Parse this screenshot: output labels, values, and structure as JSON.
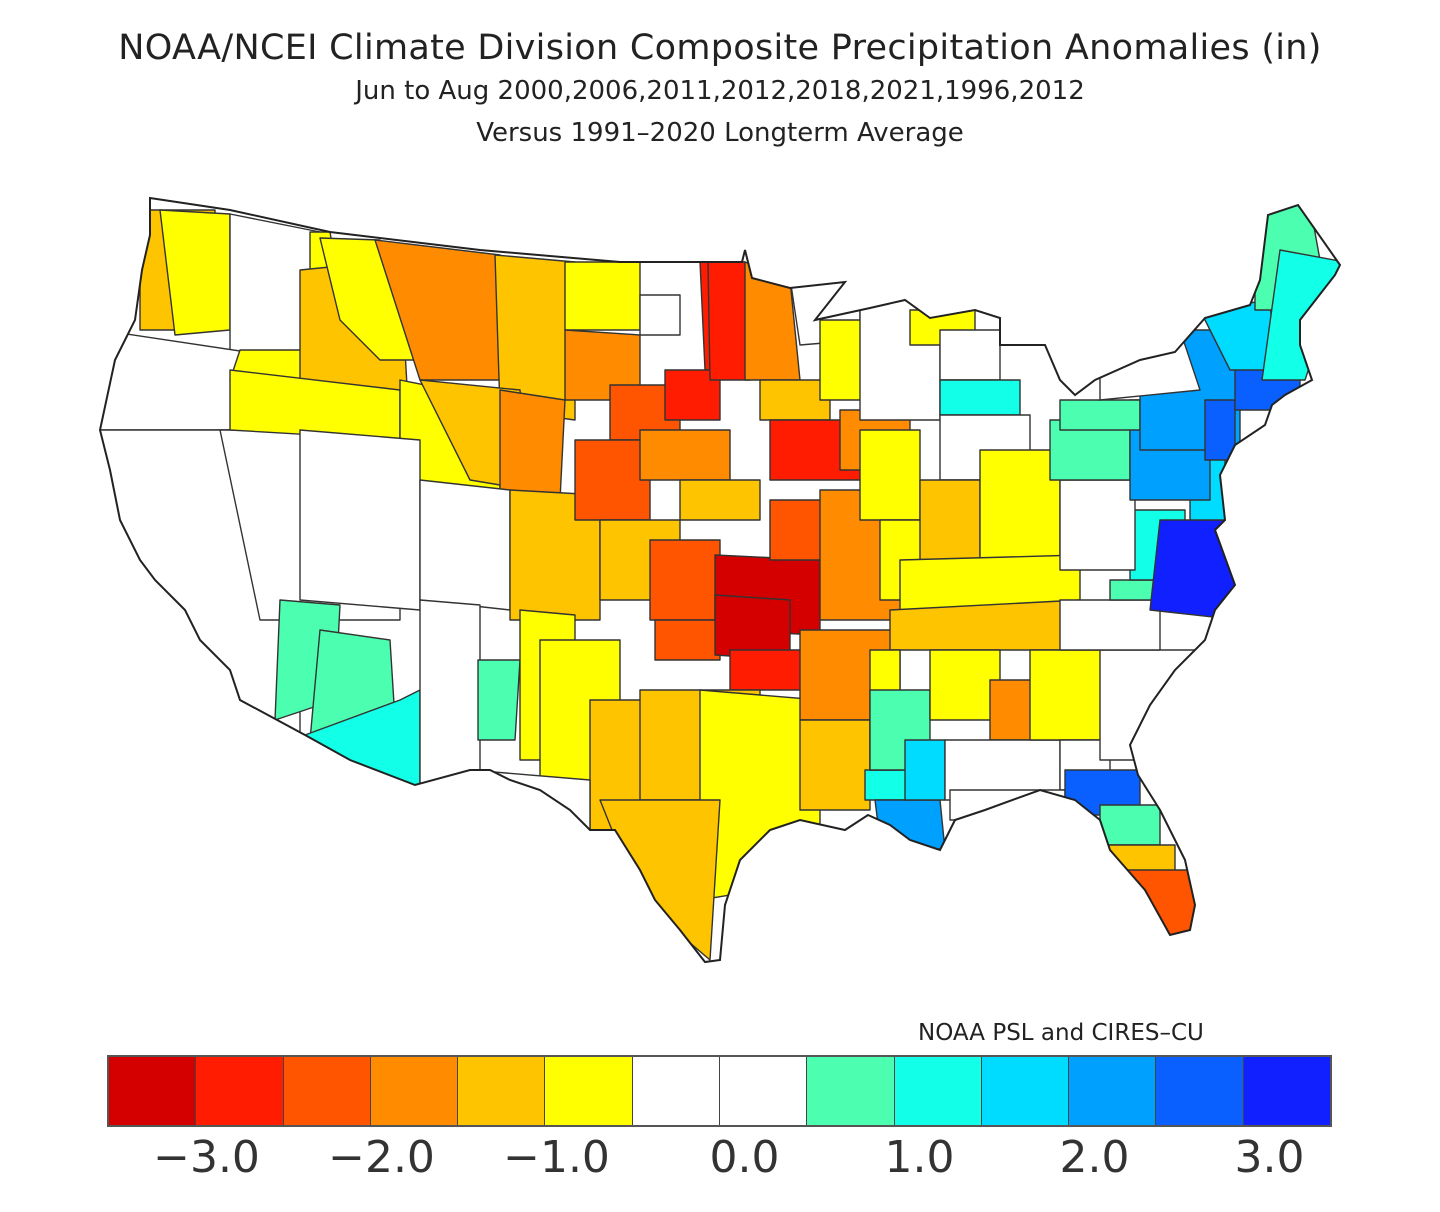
{
  "title": {
    "line1": "NOAA/NCEI Climate Division Composite Precipitation Anomalies (in)",
    "line2": "Jun to Aug  2000,2006,2011,2012,2018,2021,1996,2012",
    "line3": "Versus 1991–2020 Longterm Average"
  },
  "credit": "NOAA PSL and CIRES–CU",
  "legend": {
    "units": "in",
    "colors": [
      "#d40000",
      "#ff1c00",
      "#ff5500",
      "#ff8c00",
      "#ffc400",
      "#ffff00",
      "#ffffff",
      "#ffffff",
      "#4cffb0",
      "#12ffe8",
      "#00dcff",
      "#00a0ff",
      "#0a5fff",
      "#1020ff"
    ],
    "ticks": [
      {
        "label": "−3.0",
        "value": -3.0
      },
      {
        "label": "−2.0",
        "value": -2.0
      },
      {
        "label": "−1.0",
        "value": -1.0
      },
      {
        "label": "0.0",
        "value": 0.0
      },
      {
        "label": "1.0",
        "value": 1.0
      },
      {
        "label": "2.0",
        "value": 2.0
      },
      {
        "label": "3.0",
        "value": 3.0
      }
    ]
  },
  "map_data": {
    "type": "choropleth",
    "variable": "Precipitation anomaly (in)",
    "bins_note": "bin index 0..13 maps to legend.colors",
    "regions": [
      {
        "id": "wa-west",
        "bin": 4
      },
      {
        "id": "wa-puget",
        "bin": 5
      },
      {
        "id": "wa-other",
        "bin": 6
      },
      {
        "id": "or",
        "bin": 6
      },
      {
        "id": "ca",
        "bin": 6
      },
      {
        "id": "nv",
        "bin": 6
      },
      {
        "id": "id-north",
        "bin": 5
      },
      {
        "id": "id-central",
        "bin": 4
      },
      {
        "id": "id-south",
        "bin": 5
      },
      {
        "id": "mt-west",
        "bin": 5
      },
      {
        "id": "mt-central",
        "bin": 3
      },
      {
        "id": "mt-east",
        "bin": 4
      },
      {
        "id": "wy-west",
        "bin": 5
      },
      {
        "id": "wy-central",
        "bin": 4
      },
      {
        "id": "wy-east",
        "bin": 3
      },
      {
        "id": "ut",
        "bin": 6
      },
      {
        "id": "co-west",
        "bin": 6
      },
      {
        "id": "co-east",
        "bin": 4
      },
      {
        "id": "az-northwest",
        "bin": 8
      },
      {
        "id": "az-central",
        "bin": 8
      },
      {
        "id": "az-south",
        "bin": 9
      },
      {
        "id": "nm-west",
        "bin": 6
      },
      {
        "id": "nm-central",
        "bin": 8
      },
      {
        "id": "nm-east",
        "bin": 5
      },
      {
        "id": "nd-west",
        "bin": 5
      },
      {
        "id": "nd-central",
        "bin": 6
      },
      {
        "id": "nd-east",
        "bin": 1
      },
      {
        "id": "sd-west",
        "bin": 3
      },
      {
        "id": "sd-central",
        "bin": 2
      },
      {
        "id": "sd-east",
        "bin": 1
      },
      {
        "id": "ne-west",
        "bin": 2
      },
      {
        "id": "ne-central",
        "bin": 3
      },
      {
        "id": "ne-east",
        "bin": 4
      },
      {
        "id": "ks-west",
        "bin": 4
      },
      {
        "id": "ks-central",
        "bin": 2
      },
      {
        "id": "ks-east",
        "bin": 0
      },
      {
        "id": "ok-west",
        "bin": 2
      },
      {
        "id": "ok-central",
        "bin": 0
      },
      {
        "id": "ok-east",
        "bin": 1
      },
      {
        "id": "tx-panhandle",
        "bin": 5
      },
      {
        "id": "tx-west",
        "bin": 4
      },
      {
        "id": "tx-central",
        "bin": 4
      },
      {
        "id": "tx-east",
        "bin": 5
      },
      {
        "id": "tx-south",
        "bin": 4
      },
      {
        "id": "tx-bigbend",
        "bin": 6
      },
      {
        "id": "mn-northwest",
        "bin": 1
      },
      {
        "id": "mn-central",
        "bin": 3
      },
      {
        "id": "mn-northeast",
        "bin": 6
      },
      {
        "id": "mn-south",
        "bin": 4
      },
      {
        "id": "ia-west",
        "bin": 1
      },
      {
        "id": "ia-east",
        "bin": 3
      },
      {
        "id": "mo-west",
        "bin": 2
      },
      {
        "id": "mo-east",
        "bin": 3
      },
      {
        "id": "ar",
        "bin": 3
      },
      {
        "id": "la-west",
        "bin": 4
      },
      {
        "id": "la-east",
        "bin": 9
      },
      {
        "id": "la-south",
        "bin": 11
      },
      {
        "id": "wi-west",
        "bin": 5
      },
      {
        "id": "wi-east",
        "bin": 6
      },
      {
        "id": "mi-upper",
        "bin": 5
      },
      {
        "id": "mi-north",
        "bin": 6
      },
      {
        "id": "mi-central",
        "bin": 9
      },
      {
        "id": "mi-south",
        "bin": 6
      },
      {
        "id": "il-north",
        "bin": 5
      },
      {
        "id": "il-south",
        "bin": 5
      },
      {
        "id": "in",
        "bin": 4
      },
      {
        "id": "oh",
        "bin": 5
      },
      {
        "id": "ky",
        "bin": 5
      },
      {
        "id": "tn",
        "bin": 4
      },
      {
        "id": "ms-west",
        "bin": 5
      },
      {
        "id": "ms-central",
        "bin": 8
      },
      {
        "id": "ms-south",
        "bin": 10
      },
      {
        "id": "al-north",
        "bin": 5
      },
      {
        "id": "al-central",
        "bin": 3
      },
      {
        "id": "al-south",
        "bin": 6
      },
      {
        "id": "ga-north",
        "bin": 5
      },
      {
        "id": "ga-south",
        "bin": 6
      },
      {
        "id": "fl-panhandle",
        "bin": 6
      },
      {
        "id": "fl-north",
        "bin": 12
      },
      {
        "id": "fl-central",
        "bin": 8
      },
      {
        "id": "fl-southcentral",
        "bin": 4
      },
      {
        "id": "fl-south",
        "bin": 2
      },
      {
        "id": "sc",
        "bin": 6
      },
      {
        "id": "nc-west",
        "bin": 6
      },
      {
        "id": "nc-east",
        "bin": 8
      },
      {
        "id": "va-west",
        "bin": 9
      },
      {
        "id": "va-east",
        "bin": 13
      },
      {
        "id": "wv",
        "bin": 6
      },
      {
        "id": "md-de",
        "bin": 10
      },
      {
        "id": "pa-west",
        "bin": 8
      },
      {
        "id": "pa-east",
        "bin": 11
      },
      {
        "id": "ny-west",
        "bin": 8
      },
      {
        "id": "ny-east",
        "bin": 11
      },
      {
        "id": "nj",
        "bin": 12
      },
      {
        "id": "new-england-south",
        "bin": 12
      },
      {
        "id": "vt-nh",
        "bin": 10
      },
      {
        "id": "me-north",
        "bin": 8
      },
      {
        "id": "me-coast",
        "bin": 9
      },
      {
        "id": "ny-north",
        "bin": 6
      }
    ]
  }
}
